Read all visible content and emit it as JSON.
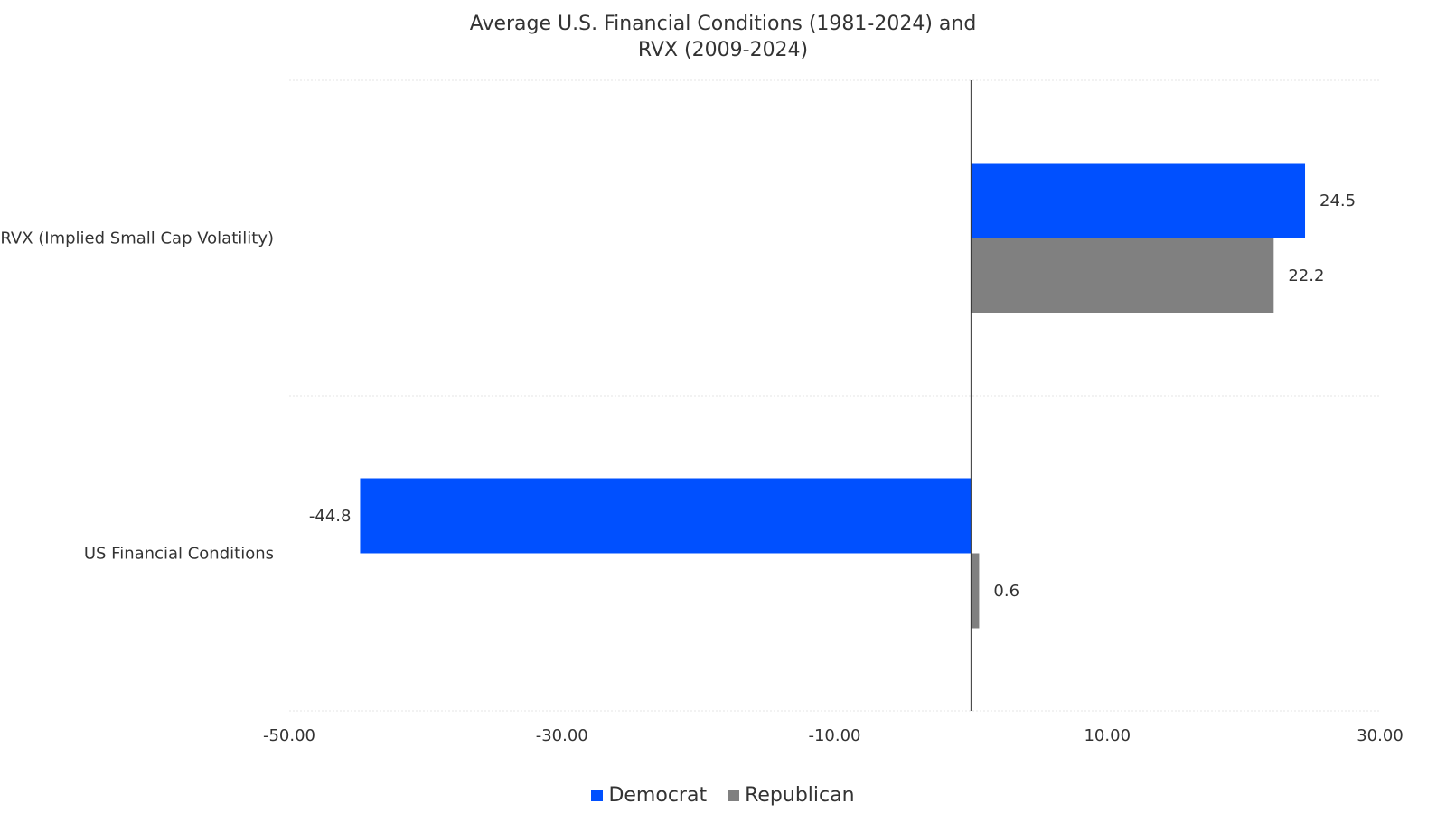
{
  "chart_data": {
    "type": "bar",
    "orientation": "horizontal",
    "title": "Average U.S. Financial Conditions (1981-2024) and RVX (2009-2024)",
    "title_lines": [
      "Average U.S. Financial Conditions (1981-2024) and",
      "RVX (2009-2024)"
    ],
    "categories": [
      "RVX (Implied Small Cap Volatility)",
      "US Financial Conditions"
    ],
    "series": [
      {
        "name": "Democrat",
        "color": "#0050FF",
        "values": [
          24.5,
          -44.8
        ],
        "labels": [
          "24.5",
          "-44.8"
        ]
      },
      {
        "name": "Republican",
        "color": "#808080",
        "values": [
          22.2,
          0.6
        ],
        "labels": [
          "22.2",
          "0.6"
        ]
      }
    ],
    "xlim": [
      -50,
      30
    ],
    "x_ticks": [
      -50,
      -30,
      -10,
      10,
      30
    ],
    "x_tick_labels": [
      "-50.00",
      "-30.00",
      "-10.00",
      "10.00",
      "30.00"
    ],
    "xlabel": "",
    "ylabel": "",
    "grid": "horizontal category separators",
    "legend_position": "bottom"
  }
}
